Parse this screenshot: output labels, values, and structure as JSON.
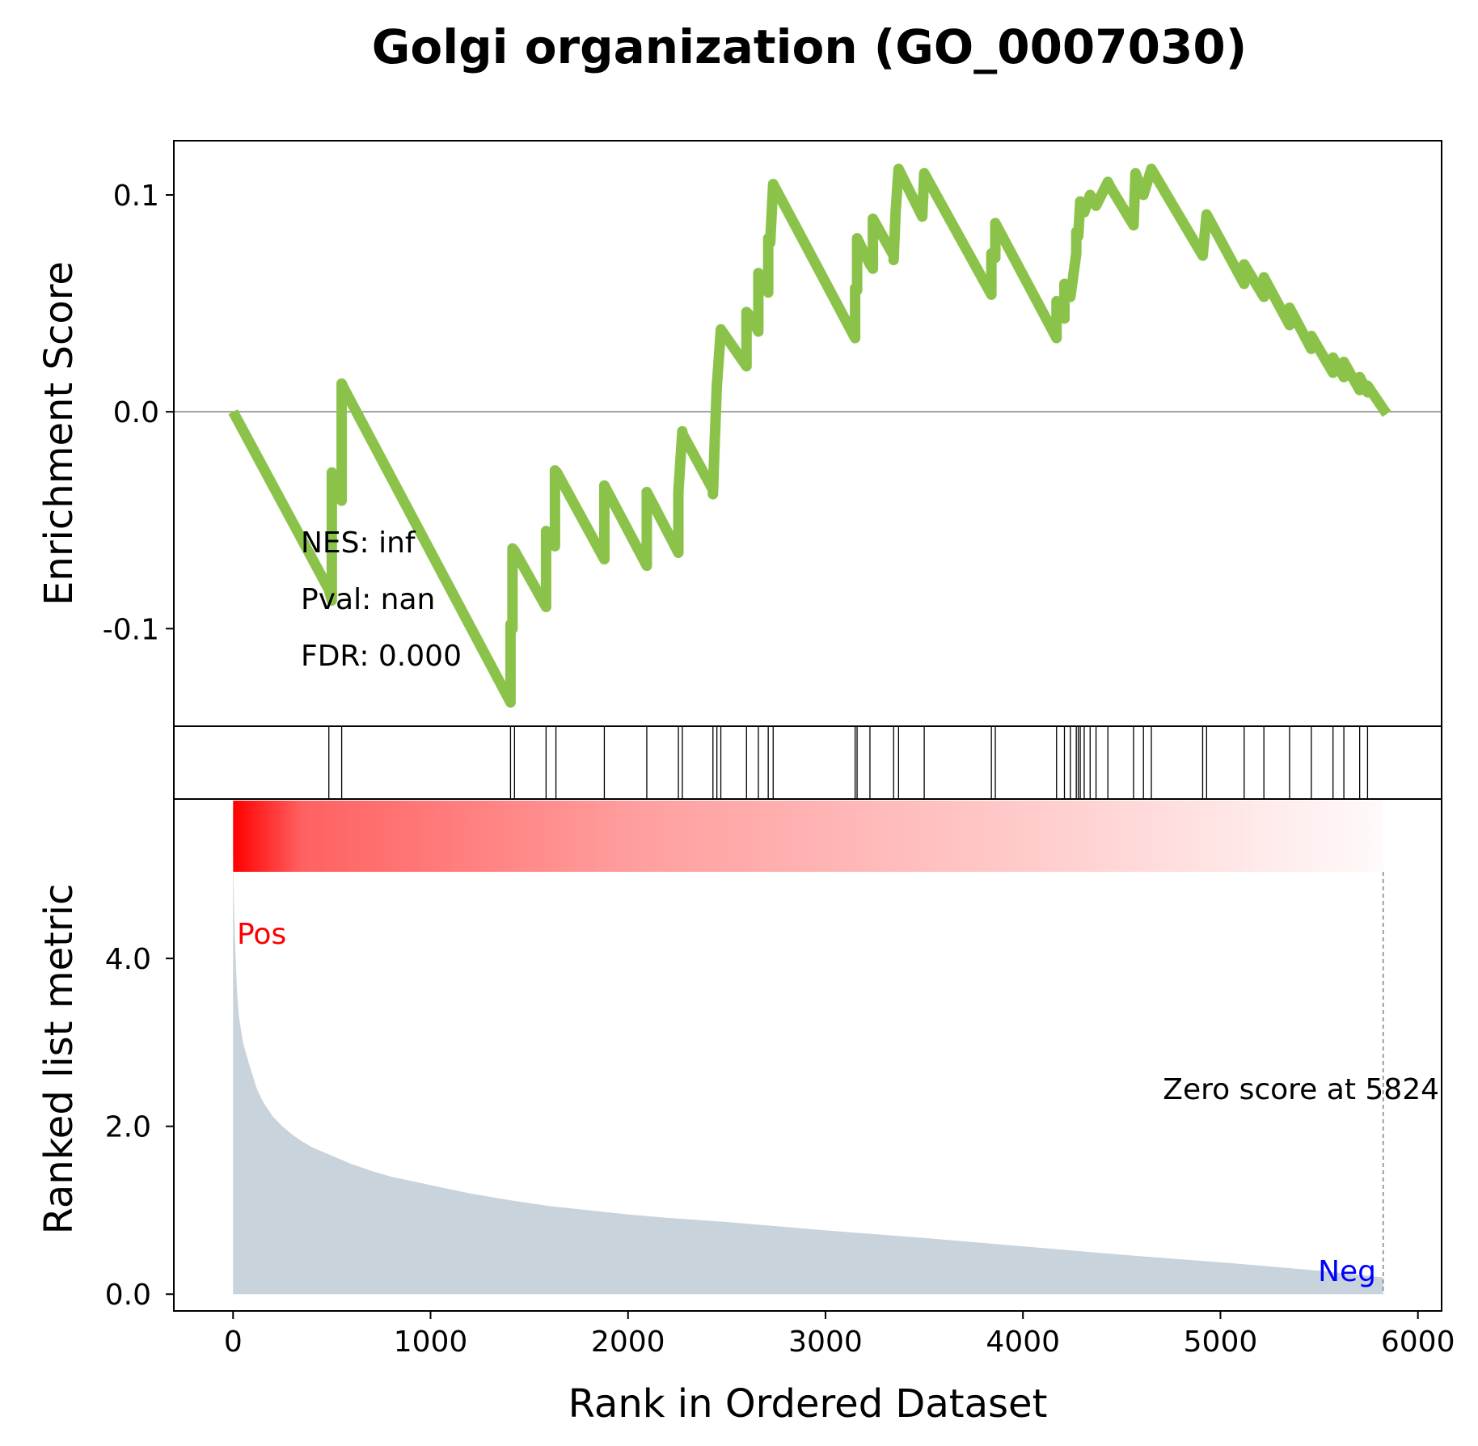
{
  "chart_data": {
    "type": "line",
    "title": "Golgi organization (GO_0007030)",
    "xlabel": "Rank in Ordered Dataset",
    "xlim": [
      -300,
      6120
    ],
    "x_ticks": [
      0,
      1000,
      2000,
      3000,
      4000,
      5000,
      6000
    ],
    "x_tick_labels": [
      "0",
      "1000",
      "2000",
      "3000",
      "4000",
      "5000",
      "6000"
    ],
    "enrichment": {
      "ylabel": "Enrichment Score",
      "ylim": [
        -0.145,
        0.125
      ],
      "y_ticks": [
        -0.1,
        0.0,
        0.1
      ],
      "y_tick_labels": [
        "-0.1",
        "0.0",
        "0.1"
      ],
      "line_color": "#8bc34a",
      "x": [
        0,
        485,
        485,
        500,
        500,
        520,
        520,
        550,
        550,
        560,
        1405,
        1405,
        1415,
        1415,
        1425,
        1425,
        1585,
        1585,
        1595,
        1595,
        1630,
        1630,
        1640,
        1640,
        1880,
        1880,
        2095,
        2095,
        2255,
        2255,
        2275,
        2275,
        2430,
        2430,
        2440,
        2440,
        2450,
        2450,
        2470,
        2470,
        2600,
        2600,
        2610,
        2610,
        2660,
        2660,
        2710,
        2710,
        2720,
        2720,
        2735,
        2735,
        3150,
        3150,
        3160,
        3160,
        3225,
        3225,
        3240,
        3240,
        3345,
        3345,
        3355,
        3355,
        3370,
        3370,
        3490,
        3490,
        3500,
        3500,
        3840,
        3840,
        3860,
        3860,
        4170,
        4170,
        4180,
        4180,
        4210,
        4210,
        4240,
        4240,
        4270,
        4270,
        4280,
        4280,
        4290,
        4290,
        4310,
        4310,
        4340,
        4340,
        4370,
        4370,
        4430,
        4430,
        4440,
        4440,
        4560,
        4560,
        4570,
        4570,
        4610,
        4610,
        4650,
        4650,
        4910,
        4910,
        4930,
        4930,
        5120,
        5120,
        5220,
        5220,
        5350,
        5350,
        5460,
        5460,
        5570,
        5570,
        5625,
        5625,
        5705,
        5705,
        5745,
        5745,
        5842
      ],
      "y": [
        0.0,
        -0.082,
        -0.082,
        -0.087,
        -0.028,
        -0.031,
        -0.031,
        -0.041,
        0.013,
        0.011,
        -0.134,
        -0.098,
        -0.1,
        -0.063,
        -0.064,
        -0.064,
        -0.09,
        -0.055,
        -0.057,
        -0.057,
        -0.062,
        -0.027,
        -0.028,
        -0.028,
        -0.068,
        -0.034,
        -0.071,
        -0.037,
        -0.065,
        -0.037,
        -0.009,
        -0.01,
        -0.036,
        -0.038,
        -0.011,
        -0.012,
        0.013,
        0.012,
        0.038,
        0.038,
        0.021,
        0.046,
        0.045,
        0.045,
        0.037,
        0.064,
        0.055,
        0.08,
        0.078,
        0.078,
        0.105,
        0.105,
        0.034,
        0.057,
        0.056,
        0.08,
        0.068,
        0.068,
        0.066,
        0.089,
        0.072,
        0.07,
        0.092,
        0.092,
        0.112,
        0.112,
        0.09,
        0.09,
        0.11,
        0.11,
        0.054,
        0.073,
        0.071,
        0.087,
        0.034,
        0.051,
        0.049,
        0.049,
        0.043,
        0.059,
        0.053,
        0.053,
        0.073,
        0.083,
        0.081,
        0.081,
        0.097,
        0.097,
        0.092,
        0.092,
        0.1,
        0.1,
        0.095,
        0.095,
        0.106,
        0.106,
        0.104,
        0.104,
        0.086,
        0.086,
        0.11,
        0.11,
        0.1,
        0.1,
        0.112,
        0.112,
        0.072,
        0.072,
        0.091,
        0.091,
        0.059,
        0.068,
        0.053,
        0.062,
        0.04,
        0.048,
        0.029,
        0.035,
        0.018,
        0.025,
        0.016,
        0.023,
        0.01,
        0.016,
        0.009,
        0.012,
        -0.001
      ],
      "stats": [
        "NES: inf",
        "Pval: nan",
        "FDR: 0.000"
      ]
    },
    "hits": {
      "positions": [
        485,
        550,
        1405,
        1425,
        1585,
        1635,
        1880,
        2095,
        2255,
        2275,
        2430,
        2450,
        2470,
        2600,
        2660,
        2710,
        2735,
        3150,
        3160,
        3225,
        3345,
        3370,
        3500,
        3840,
        3860,
        4170,
        4210,
        4240,
        4270,
        4280,
        4290,
        4310,
        4340,
        4370,
        4430,
        4560,
        4610,
        4650,
        4910,
        4930,
        5120,
        5220,
        5350,
        5460,
        5570,
        5625,
        5705,
        5745
      ]
    },
    "metric": {
      "ylabel": "Ranked list metric",
      "ylim": [
        -0.2,
        5.9
      ],
      "y_ticks": [
        0.0,
        2.0,
        4.0
      ],
      "y_tick_labels": [
        "0.0",
        "2.0",
        "4.0"
      ],
      "fill_color": "#c8d3dc",
      "x": [
        0,
        5,
        10,
        20,
        30,
        50,
        80,
        100,
        120,
        150,
        200,
        250,
        300,
        350,
        400,
        500,
        600,
        700,
        800,
        900,
        1000,
        1200,
        1400,
        1600,
        1800,
        2000,
        2200,
        2500,
        3000,
        3500,
        4000,
        4500,
        5000,
        5500,
        5824
      ],
      "y": [
        5.2,
        4.6,
        4.2,
        3.6,
        3.3,
        3.0,
        2.75,
        2.6,
        2.45,
        2.3,
        2.12,
        2.0,
        1.9,
        1.82,
        1.75,
        1.65,
        1.55,
        1.47,
        1.4,
        1.35,
        1.3,
        1.2,
        1.12,
        1.05,
        1.0,
        0.95,
        0.91,
        0.86,
        0.76,
        0.67,
        0.57,
        0.47,
        0.38,
        0.28,
        0.2
      ],
      "pos_label": "Pos",
      "neg_label": "Neg",
      "zero_score_label": "Zero score at 5824",
      "zero_score_rank": 5824
    },
    "colorbar": {
      "color": "#ff0000",
      "max_rank": 5824
    }
  }
}
